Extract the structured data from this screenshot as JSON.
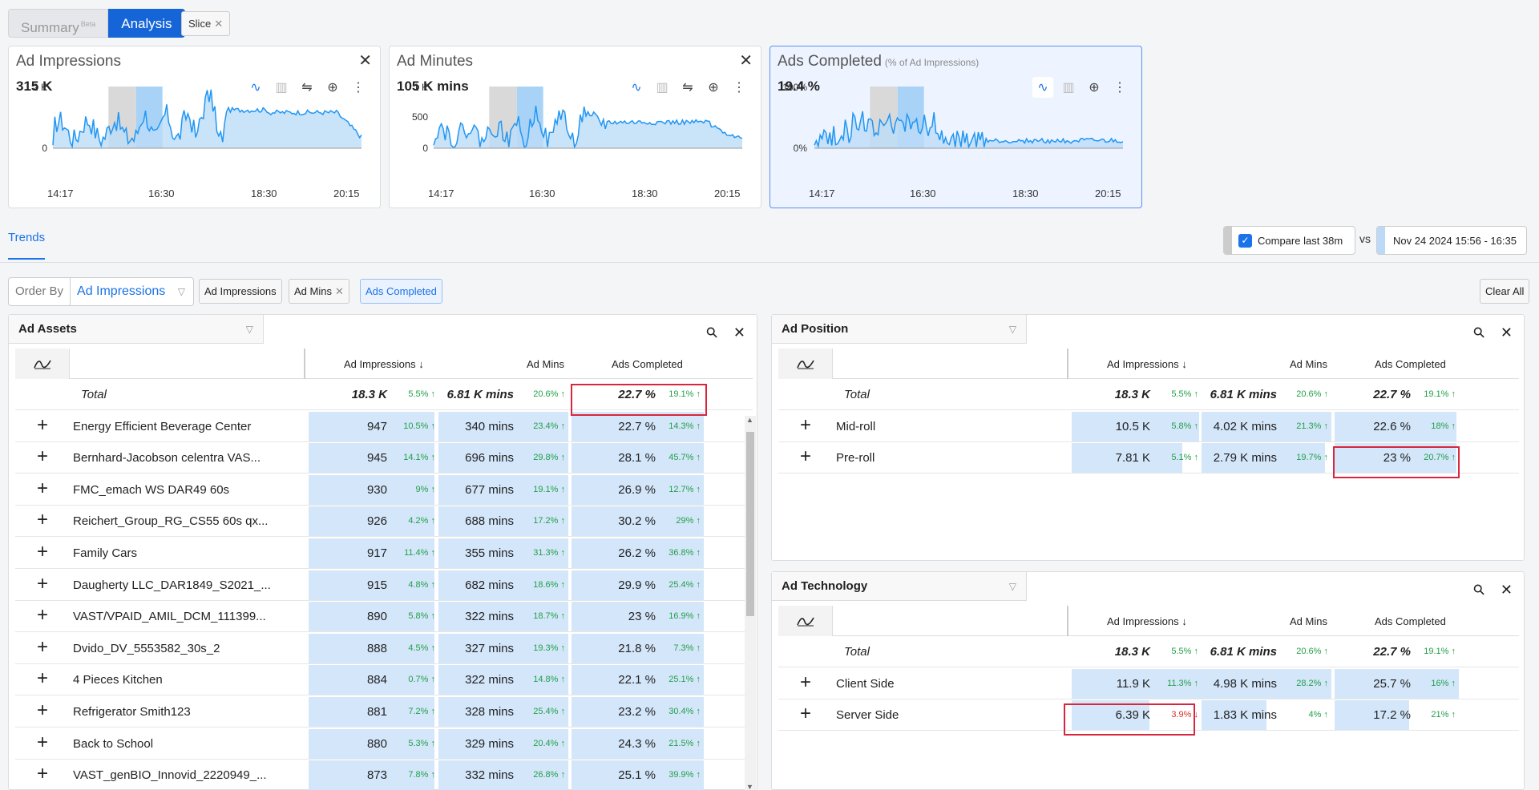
{
  "top_tabs": {
    "summary": "Summary",
    "summary_badge": "Beta",
    "analysis": "Analysis"
  },
  "slice_chip": "Slice",
  "metric_cards": [
    {
      "title": "Ad Impressions",
      "subtitle": "",
      "value": "315 K",
      "y_ticks": [
        "2 K",
        "0"
      ],
      "x_ticks": [
        "14:17",
        "16:30",
        "18:30",
        "20:15"
      ]
    },
    {
      "title": "Ad Minutes",
      "subtitle": "",
      "value": "105 K mins",
      "y_ticks": [
        "1 K",
        "500",
        "0"
      ],
      "x_ticks": [
        "14:17",
        "16:30",
        "18:30",
        "20:15"
      ]
    },
    {
      "title": "Ads Completed",
      "subtitle": "(% of Ad Impressions)",
      "value": "19.4 %",
      "y_ticks": [
        "100%",
        "0%"
      ],
      "x_ticks": [
        "14:17",
        "16:30",
        "18:30",
        "20:15"
      ]
    }
  ],
  "colors": {
    "accent": "#1a73e8",
    "series": "#2196f3",
    "fill": "#bcdcf8",
    "compare_shade": "#d9d9d9",
    "highlight": "#d7263d",
    "up": "#22a049",
    "down": "#d93025"
  },
  "trends_tab": "Trends",
  "compare": {
    "label": "Compare last 38m",
    "vs": "vs",
    "range": "Nov 24 2024 15:56 - 16:35"
  },
  "order_by": {
    "label": "Order By",
    "value": "Ad Impressions"
  },
  "metric_chips": [
    "Ad Impressions",
    "Ad Mins",
    "Ads Completed"
  ],
  "clear_all": "Clear All",
  "columns": {
    "imp": "Ad Impressions ↓",
    "mins": "Ad Mins",
    "comp": "Ads Completed"
  },
  "ad_assets": {
    "title": "Ad Assets",
    "total": {
      "name": "Total",
      "imp": "18.3 K",
      "imp_p": "5.5% ↑",
      "mins": "6.81 K mins",
      "mins_p": "20.6% ↑",
      "comp": "22.7 %",
      "comp_p": "19.1% ↑"
    },
    "rows": [
      {
        "name": "Energy Efficient Beverage Center",
        "imp": "947",
        "imp_p": "10.5% ↑",
        "mins": "340 mins",
        "mins_p": "23.4% ↑",
        "comp": "22.7 %",
        "comp_p": "14.3% ↑"
      },
      {
        "name": "Bernhard-Jacobson celentra VAS...",
        "imp": "945",
        "imp_p": "14.1% ↑",
        "mins": "696 mins",
        "mins_p": "29.8% ↑",
        "comp": "28.1 %",
        "comp_p": "45.7% ↑"
      },
      {
        "name": "FMC_emach WS DAR49 60s",
        "imp": "930",
        "imp_p": "9% ↑",
        "mins": "677 mins",
        "mins_p": "19.1% ↑",
        "comp": "26.9 %",
        "comp_p": "12.7% ↑"
      },
      {
        "name": "Reichert_Group_RG_CS55 60s qx...",
        "imp": "926",
        "imp_p": "4.2% ↑",
        "mins": "688 mins",
        "mins_p": "17.2% ↑",
        "comp": "30.2 %",
        "comp_p": "29% ↑"
      },
      {
        "name": "Family Cars",
        "imp": "917",
        "imp_p": "11.4% ↑",
        "mins": "355 mins",
        "mins_p": "31.3% ↑",
        "comp": "26.2 %",
        "comp_p": "36.8% ↑"
      },
      {
        "name": "Daugherty LLC_DAR1849_S2021_...",
        "imp": "915",
        "imp_p": "4.8% ↑",
        "mins": "682 mins",
        "mins_p": "18.6% ↑",
        "comp": "29.9 %",
        "comp_p": "25.4% ↑"
      },
      {
        "name": "VAST/VPAID_AMIL_DCM_111399...",
        "imp": "890",
        "imp_p": "5.8% ↑",
        "mins": "322 mins",
        "mins_p": "18.7% ↑",
        "comp": "23 %",
        "comp_p": "16.9% ↑"
      },
      {
        "name": "Dvido_DV_5553582_30s_2",
        "imp": "888",
        "imp_p": "4.5% ↑",
        "mins": "327 mins",
        "mins_p": "19.3% ↑",
        "comp": "21.8 %",
        "comp_p": "7.3% ↑"
      },
      {
        "name": "4 Pieces Kitchen",
        "imp": "884",
        "imp_p": "0.7% ↑",
        "mins": "322 mins",
        "mins_p": "14.8% ↑",
        "comp": "22.1 %",
        "comp_p": "25.1% ↑"
      },
      {
        "name": "Refrigerator Smith123",
        "imp": "881",
        "imp_p": "7.2% ↑",
        "mins": "328 mins",
        "mins_p": "25.4% ↑",
        "comp": "23.2 %",
        "comp_p": "30.4% ↑"
      },
      {
        "name": "Back to School",
        "imp": "880",
        "imp_p": "5.3% ↑",
        "mins": "329 mins",
        "mins_p": "20.4% ↑",
        "comp": "24.3 %",
        "comp_p": "21.5% ↑"
      },
      {
        "name": "VAST_genBIO_Innovid_2220949_...",
        "imp": "873",
        "imp_p": "7.8% ↑",
        "mins": "332 mins",
        "mins_p": "26.8% ↑",
        "comp": "25.1 %",
        "comp_p": "39.9% ↑"
      }
    ]
  },
  "ad_position": {
    "title": "Ad Position",
    "total": {
      "name": "Total",
      "imp": "18.3 K",
      "imp_p": "5.5% ↑",
      "mins": "6.81 K mins",
      "mins_p": "20.6% ↑",
      "comp": "22.7 %",
      "comp_p": "19.1% ↑"
    },
    "rows": [
      {
        "name": "Mid-roll",
        "imp": "10.5 K",
        "imp_p": "5.8% ↑",
        "mins": "4.02 K mins",
        "mins_p": "21.3% ↑",
        "comp": "22.6 %",
        "comp_p": "18% ↑"
      },
      {
        "name": "Pre-roll",
        "imp": "7.81 K",
        "imp_p": "5.1% ↑",
        "mins": "2.79 K mins",
        "mins_p": "19.7% ↑",
        "comp": "23 %",
        "comp_p": "20.7% ↑"
      }
    ]
  },
  "ad_technology": {
    "title": "Ad Technology",
    "total": {
      "name": "Total",
      "imp": "18.3 K",
      "imp_p": "5.5% ↑",
      "mins": "6.81 K mins",
      "mins_p": "20.6% ↑",
      "comp": "22.7 %",
      "comp_p": "19.1% ↑"
    },
    "rows": [
      {
        "name": "Client Side",
        "imp": "11.9 K",
        "imp_p": "11.3% ↑",
        "mins": "4.98 K mins",
        "mins_p": "28.2% ↑",
        "comp": "25.7 %",
        "comp_p": "16% ↑"
      },
      {
        "name": "Server Side",
        "imp": "6.39 K",
        "imp_p": "3.9% ↓",
        "mins": "1.83 K mins",
        "mins_p": "4% ↑",
        "comp": "17.2 %",
        "comp_p": "21% ↑"
      }
    ]
  }
}
